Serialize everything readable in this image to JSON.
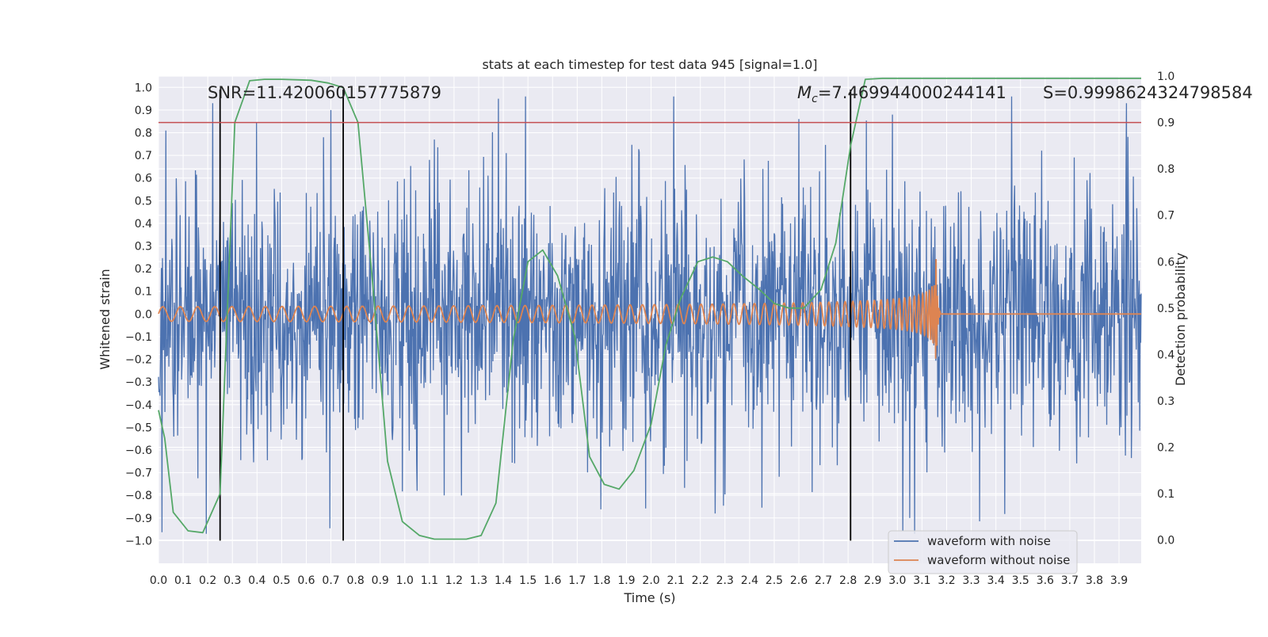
{
  "chart_data": {
    "type": "line",
    "title": "stats at each timestep for test data 945 [signal=1.0]",
    "xlabel": "Time (s)",
    "ylabel_left": "Whitened strain",
    "ylabel_right": "Detection probability",
    "xlim": [
      0.0,
      3.99
    ],
    "ylim_left": [
      -1.1,
      1.05
    ],
    "ylim_right": [
      -0.05,
      1.0
    ],
    "grid": true,
    "xticks": [
      0.0,
      0.1,
      0.2,
      0.3,
      0.4,
      0.5,
      0.6,
      0.7,
      0.8,
      0.9,
      1.0,
      1.1,
      1.2,
      1.3,
      1.4,
      1.5,
      1.6,
      1.7,
      1.8,
      1.9,
      2.0,
      2.1,
      2.2,
      2.3,
      2.4,
      2.5,
      2.6,
      2.7,
      2.8,
      2.9,
      3.0,
      3.1,
      3.2,
      3.3,
      3.4,
      3.5,
      3.6,
      3.7,
      3.8,
      3.9
    ],
    "yticks_left": [
      1.0,
      0.9,
      0.8,
      0.7,
      0.6,
      0.5,
      0.4,
      0.3,
      0.2,
      0.1,
      0.0,
      -0.1,
      -0.2,
      -0.3,
      -0.4,
      -0.5,
      -0.6,
      -0.7,
      -0.8,
      -0.9,
      -1.0
    ],
    "yticks_right": [
      1.0,
      0.9,
      0.8,
      0.7,
      0.6,
      0.5,
      0.4,
      0.3,
      0.2,
      0.1,
      0.0
    ],
    "annotations": {
      "snr": "SNR=11.420060157775879",
      "mc_symbol": "M",
      "mc_sub": "c",
      "mc_value": "=7.469944000244141",
      "s": "S=0.9998624324798584"
    },
    "threshold": {
      "value": 0.9,
      "axis": "right",
      "color": "#c44e52"
    },
    "vlines": [
      0.25,
      0.75,
      2.81
    ],
    "vline_range": [
      -1.0,
      0.99
    ],
    "legend": {
      "placement": "lower-right",
      "entries": [
        {
          "label": "waveform with noise",
          "color": "#4c72b0"
        },
        {
          "label": "waveform without noise",
          "color": "#dd8452"
        }
      ]
    },
    "series": [
      {
        "name": "waveform with noise",
        "axis": "left",
        "color": "#4c72b0",
        "synthetic": {
          "noise_sd": 0.27,
          "sample_step": 0.002,
          "clip": [
            -0.97,
            0.96
          ],
          "peaks": [
            [
              0.03,
              0.81
            ],
            [
              0.22,
              0.93
            ],
            [
              0.7,
              0.9
            ],
            [
              1.12,
              0.77
            ],
            [
              1.38,
              0.95
            ],
            [
              2.6,
              0.86
            ],
            [
              2.98,
              0.88
            ],
            [
              3.05,
              -0.9
            ],
            [
              3.07,
              -0.97
            ],
            [
              3.93,
              0.93
            ],
            [
              2.26,
              -0.88
            ],
            [
              1.16,
              -0.8
            ],
            [
              1.05,
              -0.78
            ]
          ]
        }
      },
      {
        "name": "waveform without noise",
        "axis": "left",
        "color": "#dd8452",
        "synthetic": {
          "start_time": 0.0,
          "merger_time": 3.155,
          "ringdown_end": 3.175,
          "base_amplitude": 0.032,
          "peak_amplitude": 0.37,
          "base_frequency": 14,
          "peak_frequency": 180
        }
      },
      {
        "name": "detection probability",
        "axis": "right",
        "color": "#55a868",
        "x": [
          0.0,
          0.025,
          0.06,
          0.12,
          0.18,
          0.25,
          0.28,
          0.31,
          0.37,
          0.43,
          0.5,
          0.62,
          0.69,
          0.75,
          0.81,
          0.87,
          0.93,
          0.99,
          1.06,
          1.12,
          1.19,
          1.25,
          1.31,
          1.37,
          1.44,
          1.5,
          1.56,
          1.62,
          1.69,
          1.75,
          1.81,
          1.87,
          1.93,
          2.0,
          2.06,
          2.12,
          2.19,
          2.25,
          2.31,
          2.37,
          2.44,
          2.5,
          2.56,
          2.62,
          2.69,
          2.75,
          2.81,
          2.87,
          2.94,
          3.0,
          3.5,
          3.99
        ],
        "y": [
          0.28,
          0.22,
          0.06,
          0.02,
          0.016,
          0.1,
          0.5,
          0.9,
          0.99,
          0.993,
          0.993,
          0.991,
          0.985,
          0.975,
          0.9,
          0.55,
          0.17,
          0.04,
          0.01,
          0.002,
          0.002,
          0.002,
          0.01,
          0.08,
          0.43,
          0.6,
          0.625,
          0.57,
          0.44,
          0.18,
          0.12,
          0.11,
          0.15,
          0.25,
          0.42,
          0.52,
          0.6,
          0.61,
          0.6,
          0.57,
          0.54,
          0.51,
          0.5,
          0.5,
          0.54,
          0.64,
          0.85,
          0.993,
          0.995,
          0.995,
          0.995,
          0.995
        ]
      }
    ]
  }
}
